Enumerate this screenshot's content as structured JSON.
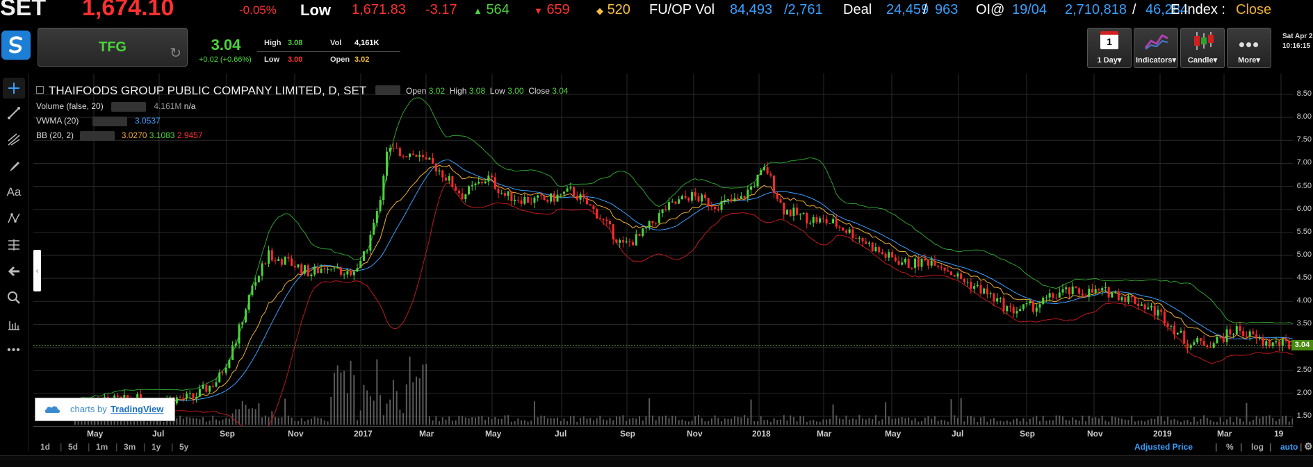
{
  "ticker": {
    "index_name": "SET",
    "index_value": "1,674.10",
    "index_change_pct": "-0.05%",
    "low_label": "Low",
    "low_value": "1,671.83",
    "low_change": "-3.17",
    "up_count": "564",
    "down_count": "659",
    "unchanged_count": "520",
    "fuop_label": "FU/OP Vol",
    "fuop_vol": "84,493",
    "fuop_vol2": "/2,761",
    "deal_label": "Deal",
    "deal_value": "24,459",
    "deal_sep": "/",
    "deal_value2": "963",
    "oi_label": "OI@",
    "oi_date": "19/04",
    "oi_value": "2,710,818",
    "oi_sep": "/",
    "oi_value2": "46,284",
    "eindex_label": "E.Index :",
    "eindex_status": "Close"
  },
  "quote": {
    "symbol": "TFG",
    "price": "3.04",
    "change": "+0.02 (+0.66%)",
    "high_label": "High",
    "high": "3.08",
    "low_label": "Low",
    "low": "3.00",
    "vol_label": "Vol",
    "vol": "4,161K",
    "open_label": "Open",
    "open": "3.02"
  },
  "toolbar_buttons": {
    "interval_icon_text": "1",
    "interval": "1 Day",
    "indicators": "Indicators",
    "candle": "Candle",
    "more": "More"
  },
  "datetime": {
    "line1": "Sat Apr 2",
    "line2": "10:16:15"
  },
  "chart": {
    "title": "THAIFOODS GROUP PUBLIC COMPANY LIMITED, D, SET",
    "ohlc": {
      "open_label": "Open",
      "open": "3.02",
      "high_label": "High",
      "high": "3.08",
      "low_label": "Low",
      "low": "3.00",
      "close_label": "Close",
      "close": "3.04"
    },
    "volume_label": "Volume (false, 20)",
    "volume_value": "4.161M",
    "volume_value2": "n/a",
    "vwma_label": "VWMA (20)",
    "vwma_value": "3.0537",
    "bb_label": "BB (20, 2)",
    "bb_mid": "3.0270",
    "bb_upper": "3.1083",
    "bb_lower": "2.9457",
    "last_price": "3.04",
    "watermark_text": "charts by",
    "watermark_link": "TradingView",
    "colors": {
      "up": "#4cd43c",
      "down": "#ff2a2a",
      "bb_upper": "#2fa02f",
      "bb_lower": "#c01a1a",
      "vwma": "#3aa0ff",
      "mid": "#f0b030"
    }
  },
  "chart_data": {
    "type": "line",
    "series": [],
    "y_ticks": [
      "8.50",
      "8.00",
      "7.50",
      "7.00",
      "6.50",
      "6.00",
      "5.50",
      "5.00",
      "4.50",
      "4.00",
      "3.50",
      "3.00",
      "2.50",
      "2.00",
      "1.50"
    ],
    "x_ticks": [
      "May",
      "Jul",
      "Sep",
      "Nov",
      "2017",
      "Mar",
      "May",
      "Jul",
      "Sep",
      "Nov",
      "2018",
      "Mar",
      "May",
      "Jul",
      "Sep",
      "Nov",
      "2019",
      "Mar",
      "19"
    ],
    "ylim": [
      1.5,
      8.5
    ],
    "price_points": [
      [
        0,
        1.8
      ],
      [
        60,
        1.85
      ],
      [
        140,
        1.9
      ],
      [
        170,
        2.3
      ],
      [
        190,
        3.1
      ],
      [
        210,
        4.3
      ],
      [
        230,
        5.0
      ],
      [
        260,
        4.8
      ],
      [
        280,
        4.6
      ],
      [
        300,
        4.8
      ],
      [
        320,
        4.6
      ],
      [
        340,
        4.8
      ],
      [
        360,
        6.0
      ],
      [
        370,
        7.3
      ],
      [
        400,
        7.2
      ],
      [
        430,
        6.9
      ],
      [
        460,
        6.3
      ],
      [
        490,
        6.7
      ],
      [
        510,
        6.3
      ],
      [
        540,
        6.2
      ],
      [
        560,
        6.2
      ],
      [
        590,
        6.4
      ],
      [
        620,
        5.9
      ],
      [
        650,
        5.2
      ],
      [
        670,
        5.4
      ],
      [
        700,
        6.0
      ],
      [
        730,
        6.3
      ],
      [
        760,
        6.1
      ],
      [
        790,
        6.2
      ],
      [
        820,
        6.9
      ],
      [
        840,
        6.0
      ],
      [
        870,
        5.8
      ],
      [
        900,
        5.7
      ],
      [
        930,
        5.4
      ],
      [
        960,
        5.0
      ],
      [
        990,
        4.8
      ],
      [
        1020,
        4.9
      ],
      [
        1050,
        4.5
      ],
      [
        1080,
        4.2
      ],
      [
        1110,
        3.8
      ],
      [
        1140,
        3.9
      ],
      [
        1170,
        4.2
      ],
      [
        1200,
        4.2
      ],
      [
        1230,
        4.2
      ],
      [
        1260,
        4.0
      ],
      [
        1290,
        3.7
      ],
      [
        1320,
        3.1
      ],
      [
        1350,
        3.1
      ],
      [
        1380,
        3.4
      ],
      [
        1410,
        3.1
      ],
      [
        1440,
        3.05
      ],
      [
        1480,
        3.04
      ]
    ]
  },
  "price_axis": [
    "8.50",
    "8.00",
    "7.50",
    "7.00",
    "6.50",
    "6.00",
    "5.50",
    "5.00",
    "4.50",
    "4.00",
    "3.50",
    "3.00",
    "2.50",
    "2.00",
    "1.50"
  ],
  "time_axis": [
    "May",
    "Jul",
    "Sep",
    "Nov",
    "2017",
    "Mar",
    "May",
    "Jul",
    "Sep",
    "Nov",
    "2018",
    "Mar",
    "May",
    "Jul",
    "Sep",
    "Nov",
    "2019",
    "Mar",
    "19"
  ],
  "ranges": [
    "1d",
    "5d",
    "1m",
    "3m",
    "1y",
    "5y"
  ],
  "bottom_right": {
    "adjusted": "Adjusted Price",
    "percent": "%",
    "log": "log",
    "auto": "auto"
  }
}
